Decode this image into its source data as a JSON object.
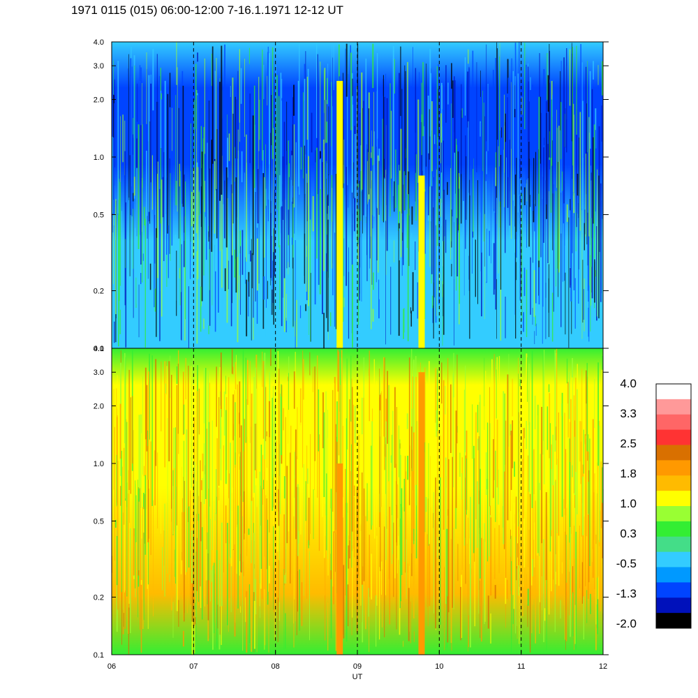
{
  "title": "1971 0115 (015) 06:00-12:00 7-16.1.1971  12-12 UT",
  "chart_data": {
    "type": "heatmap",
    "x_axis": {
      "label": "UT",
      "ticks": [
        "06",
        "07",
        "08",
        "09",
        "10",
        "11",
        "12"
      ],
      "range": [
        6,
        12
      ],
      "dashed_gridlines_at": [
        7,
        8,
        9,
        10,
        11
      ]
    },
    "panels": [
      {
        "id": "top",
        "y_axis": {
          "scale": "log",
          "range": [
            0.1,
            4.0
          ],
          "ticks": [
            "4.0",
            "3.0",
            "2.0",
            "1.0",
            "0.5",
            "0.2",
            "0.1"
          ]
        },
        "dominant_levels": [
          "0.3",
          "-0.5",
          "-1.3"
        ],
        "features": [
          {
            "x": 8.78,
            "level": "1.8",
            "y_range": [
              0.1,
              2.5
            ]
          },
          {
            "x": 9.78,
            "level": "1.8",
            "y_range": [
              0.1,
              0.8
            ]
          }
        ]
      },
      {
        "id": "bottom",
        "y_axis": {
          "scale": "log",
          "range": [
            0.1,
            4.0
          ],
          "ticks": [
            "4.0",
            "3.0",
            "2.0",
            "1.0",
            "0.5",
            "0.2",
            "0.1"
          ]
        },
        "dominant_levels": [
          "1.0",
          "1.8"
        ],
        "features": [
          {
            "x": 8.78,
            "level": "2.5",
            "y_range": [
              0.1,
              1.0
            ]
          },
          {
            "x": 9.78,
            "level": "2.5",
            "y_range": [
              0.1,
              3.0
            ]
          }
        ]
      }
    ],
    "colorbar": {
      "labels": [
        "4.0",
        "3.3",
        "2.5",
        "1.8",
        "1.0",
        "0.3",
        "-0.5",
        "-1.3",
        "-2.0"
      ],
      "colors_top_to_bottom": [
        "#ffffff",
        "#ff9999",
        "#ff6666",
        "#ff3333",
        "#d97000",
        "#ff9900",
        "#ffbb00",
        "#ffff00",
        "#99ff33",
        "#33ee33",
        "#44dd88",
        "#33ccff",
        "#0099ff",
        "#0044ff",
        "#0011bb",
        "#000000"
      ]
    }
  }
}
